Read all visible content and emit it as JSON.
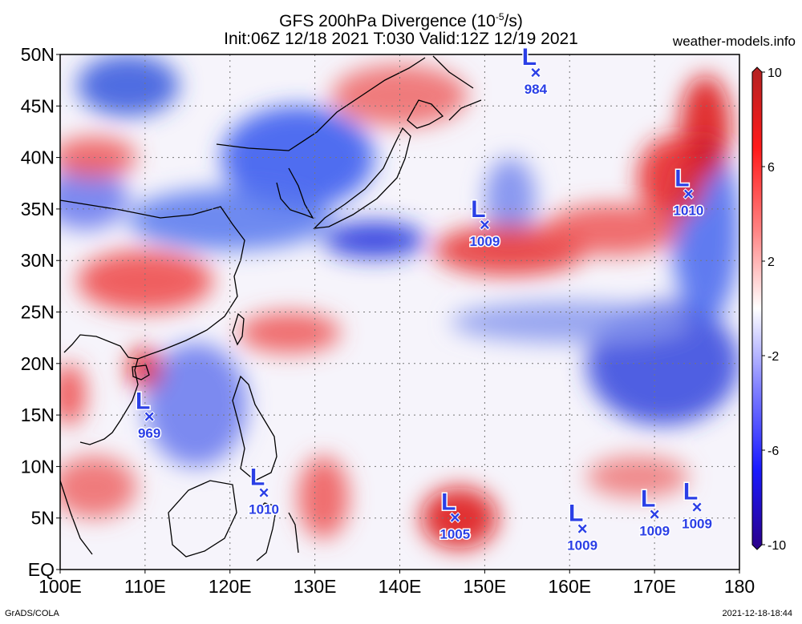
{
  "title": {
    "line1_prefix": "GFS 200hPa Divergence (10",
    "line1_exp": "-5",
    "line1_suffix": "/s)",
    "line2": "Init:06Z 12/18 2021 T:030 Valid:12Z 12/19 2021"
  },
  "site": "weather-models.info",
  "footer": {
    "left": "GrADS/COLA",
    "right": "2021-12-18-18:44"
  },
  "map": {
    "lon_range": [
      100,
      180
    ],
    "lat_range": [
      0,
      50
    ],
    "x_ticks": [
      {
        "value": 100,
        "label": "100E"
      },
      {
        "value": 110,
        "label": "110E"
      },
      {
        "value": 120,
        "label": "120E"
      },
      {
        "value": 130,
        "label": "130E"
      },
      {
        "value": 140,
        "label": "140E"
      },
      {
        "value": 150,
        "label": "150E"
      },
      {
        "value": 160,
        "label": "160E"
      },
      {
        "value": 170,
        "label": "170E"
      },
      {
        "value": 180,
        "label": "180"
      }
    ],
    "y_ticks": [
      {
        "value": 0,
        "label": "EQ"
      },
      {
        "value": 5,
        "label": "5N"
      },
      {
        "value": 10,
        "label": "10N"
      },
      {
        "value": 15,
        "label": "15N"
      },
      {
        "value": 20,
        "label": "20N"
      },
      {
        "value": 25,
        "label": "25N"
      },
      {
        "value": 30,
        "label": "30N"
      },
      {
        "value": 35,
        "label": "35N"
      },
      {
        "value": 40,
        "label": "40N"
      },
      {
        "value": 45,
        "label": "45N"
      },
      {
        "value": 50,
        "label": "50N"
      }
    ],
    "lows": [
      {
        "lon": 156,
        "lat": 48.3,
        "pressure": "984"
      },
      {
        "lon": 150,
        "lat": 33.5,
        "pressure": "1009"
      },
      {
        "lon": 174,
        "lat": 36.5,
        "pressure": "1010"
      },
      {
        "lon": 110.5,
        "lat": 14.9,
        "pressure": "969"
      },
      {
        "lon": 124,
        "lat": 7.5,
        "pressure": "1010"
      },
      {
        "lon": 146.5,
        "lat": 5.1,
        "pressure": "1005"
      },
      {
        "lon": 161.5,
        "lat": 4.0,
        "pressure": "1009"
      },
      {
        "lon": 170,
        "lat": 5.4,
        "pressure": "1009"
      },
      {
        "lon": 175,
        "lat": 6.1,
        "pressure": "1009"
      }
    ],
    "blobs": [
      {
        "lon": 137,
        "lat": 32,
        "rx": 6,
        "ry": 1.8,
        "color": "#2233dd"
      },
      {
        "lon": 128,
        "lat": 40,
        "rx": 9,
        "ry": 5,
        "color": "#3355ee"
      },
      {
        "lon": 120,
        "lat": 34,
        "rx": 12,
        "ry": 3,
        "color": "#5577ee"
      },
      {
        "lon": 108,
        "lat": 47,
        "rx": 6,
        "ry": 3,
        "color": "#3355dd"
      },
      {
        "lon": 171,
        "lat": 20,
        "rx": 9,
        "ry": 6,
        "color": "#3344dd"
      },
      {
        "lon": 176,
        "lat": 33,
        "rx": 4,
        "ry": 9,
        "color": "#4466ee"
      },
      {
        "lon": 116,
        "lat": 16,
        "rx": 6,
        "ry": 6,
        "color": "#6677ee"
      },
      {
        "lon": 103,
        "lat": 36,
        "rx": 5,
        "ry": 3,
        "color": "#6677ee"
      },
      {
        "lon": 153,
        "lat": 36,
        "rx": 3,
        "ry": 4,
        "color": "#7788ee"
      },
      {
        "lon": 160,
        "lat": 24,
        "rx": 14,
        "ry": 2,
        "color": "#8899ee"
      },
      {
        "lon": 176,
        "lat": 43,
        "rx": 3,
        "ry": 5,
        "color": "#dd1111"
      },
      {
        "lon": 172,
        "lat": 38,
        "rx": 4,
        "ry": 4,
        "color": "#e82222"
      },
      {
        "lon": 153,
        "lat": 31,
        "rx": 9,
        "ry": 2.5,
        "color": "#e83333"
      },
      {
        "lon": 165,
        "lat": 33,
        "rx": 8,
        "ry": 2.5,
        "color": "#ee5555"
      },
      {
        "lon": 147,
        "lat": 5,
        "rx": 4.5,
        "ry": 3,
        "color": "#dd1111"
      },
      {
        "lon": 110,
        "lat": 19.5,
        "rx": 2,
        "ry": 2,
        "color": "#dd1111"
      },
      {
        "lon": 110,
        "lat": 28,
        "rx": 8,
        "ry": 3,
        "color": "#ee4444"
      },
      {
        "lon": 127,
        "lat": 23,
        "rx": 6,
        "ry": 2,
        "color": "#ee5555"
      },
      {
        "lon": 101,
        "lat": 17,
        "rx": 2,
        "ry": 3,
        "color": "#ee4444"
      },
      {
        "lon": 104,
        "lat": 8,
        "rx": 5,
        "ry": 3,
        "color": "#ee6666"
      },
      {
        "lon": 140,
        "lat": 46,
        "rx": 8,
        "ry": 3,
        "color": "#ee6666"
      },
      {
        "lon": 104,
        "lat": 40,
        "rx": 5,
        "ry": 2,
        "color": "#ee5555"
      },
      {
        "lon": 168,
        "lat": 9,
        "rx": 6,
        "ry": 2,
        "color": "#ee7777"
      },
      {
        "lon": 131,
        "lat": 7,
        "rx": 3,
        "ry": 4,
        "color": "#ee5555"
      }
    ]
  },
  "colorbar": {
    "stops": [
      "#b22222",
      "#ff1a1a",
      "#ff8080",
      "#ffffff",
      "#8080ff",
      "#1a1aff",
      "#2b0088"
    ],
    "labels": [
      "10",
      "6",
      "2",
      "-2",
      "-6",
      "-10"
    ]
  }
}
